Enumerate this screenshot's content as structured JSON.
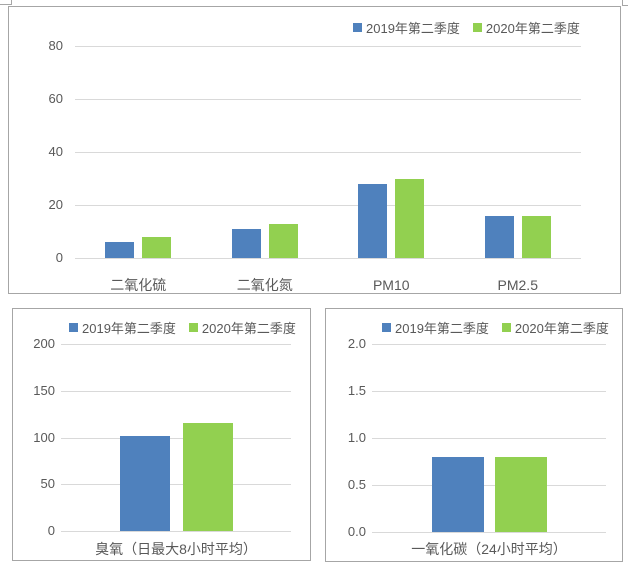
{
  "page": {
    "background": "#ffffff"
  },
  "palette": {
    "series_2019": "#4F81BD",
    "series_2020": "#92D050",
    "gridline": "#D9D9D9",
    "chart_border": "#A6A6A6",
    "text": "#595959"
  },
  "chart_data": [
    {
      "id": "air-pollutants",
      "type": "bar",
      "categories": [
        "二氧化硫",
        "二氧化氮",
        "PM10",
        "PM2.5"
      ],
      "series": [
        {
          "name": "2019年第二季度",
          "color": "#4F81BD",
          "values": [
            6,
            11,
            28,
            16
          ]
        },
        {
          "name": "2020年第二季度",
          "color": "#92D050",
          "values": [
            8,
            13,
            30,
            16
          ]
        }
      ],
      "ylim": [
        0,
        80
      ],
      "yticks": [
        0,
        20,
        40,
        60,
        80
      ],
      "ytick_labels": [
        "0",
        "20",
        "40",
        "60",
        "80"
      ],
      "grid": true,
      "legend_position": "top-right"
    },
    {
      "id": "ozone",
      "type": "bar",
      "categories": [
        "臭氧（日最大8小时平均）"
      ],
      "series": [
        {
          "name": "2019年第二季度",
          "color": "#4F81BD",
          "values": [
            102
          ]
        },
        {
          "name": "2020年第二季度",
          "color": "#92D050",
          "values": [
            116
          ]
        }
      ],
      "ylim": [
        0,
        200
      ],
      "yticks": [
        0,
        50,
        100,
        150,
        200
      ],
      "ytick_labels": [
        "0",
        "50",
        "100",
        "150",
        "200"
      ],
      "grid": true,
      "legend_position": "top-center"
    },
    {
      "id": "carbon-monoxide",
      "type": "bar",
      "categories": [
        "一氧化碳（24小时平均）"
      ],
      "series": [
        {
          "name": "2019年第二季度",
          "color": "#4F81BD",
          "values": [
            0.8
          ]
        },
        {
          "name": "2020年第二季度",
          "color": "#92D050",
          "values": [
            0.8
          ]
        }
      ],
      "ylim": [
        0,
        2
      ],
      "yticks": [
        0,
        0.5,
        1,
        1.5,
        2
      ],
      "ytick_labels": [
        "0.0",
        "0.5",
        "1.0",
        "1.5",
        "2.0"
      ],
      "grid": true,
      "legend_position": "top-center"
    }
  ]
}
